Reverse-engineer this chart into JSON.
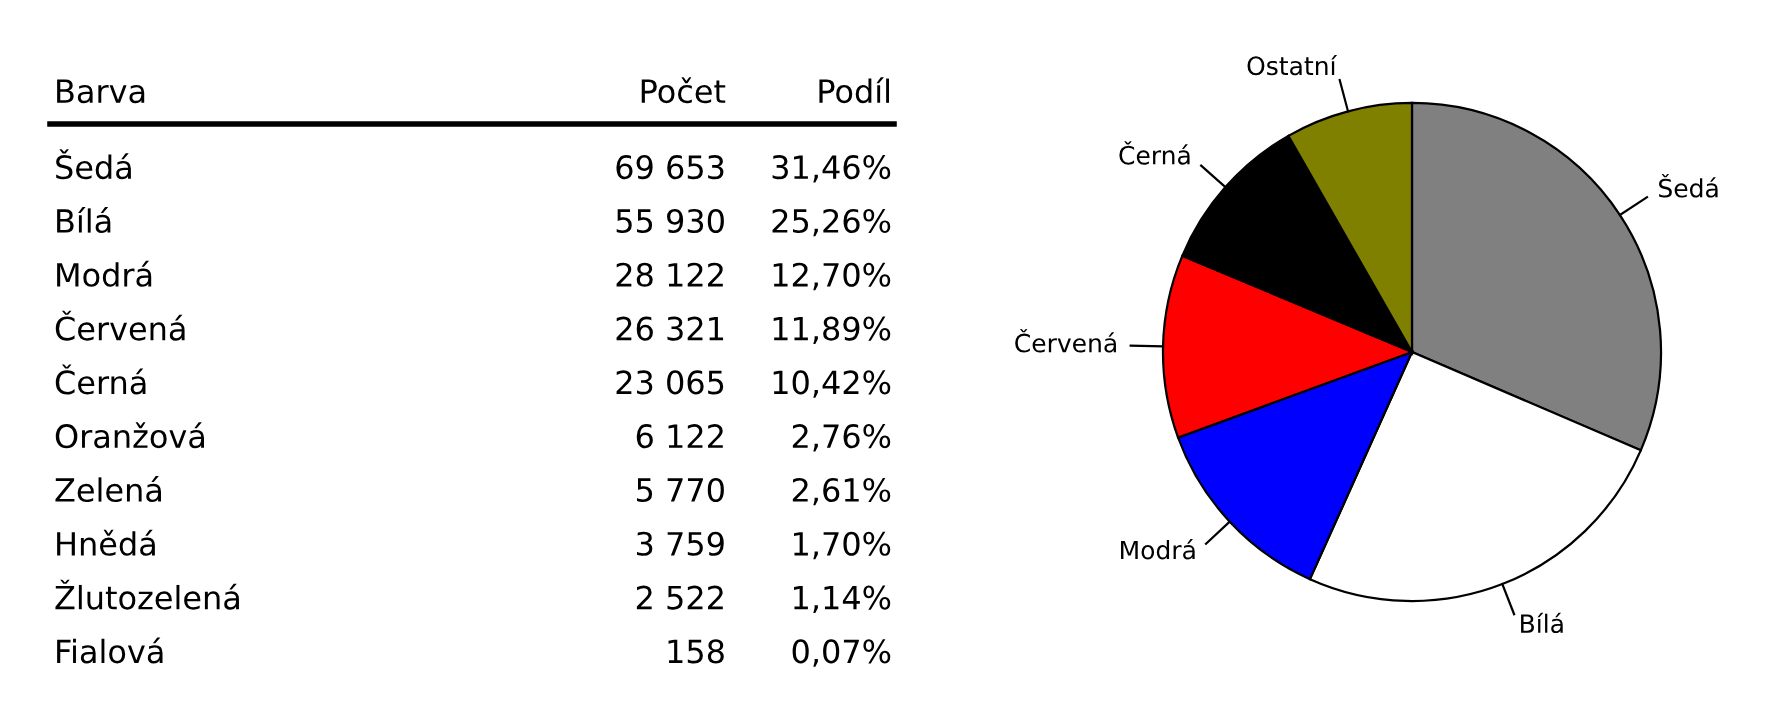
{
  "chart_data": [
    {
      "type": "other",
      "annotations": [
        "Barva"
      ],
      "categories": [
        "Šedá",
        "Bílá",
        "Modrá",
        "Červená",
        "Černá",
        "Oranžová",
        "Zelená",
        "Hnědá",
        "Žlutozelená",
        "Fialová"
      ],
      "series": [
        {
          "name": "Počet",
          "values": [
            69653,
            55930,
            28122,
            26321,
            23065,
            6122,
            5770,
            3759,
            2522,
            158
          ],
          "value_labels": [
            "69 653",
            "55 930",
            "28 122",
            "26 321",
            "23 065",
            "6 122",
            "5 770",
            "3 759",
            "2 522",
            "158"
          ]
        },
        {
          "name": "Podíl",
          "values": [
            31.46,
            25.26,
            12.7,
            11.89,
            10.42,
            2.76,
            2.61,
            1.7,
            1.14,
            0.07
          ],
          "value_labels": [
            "31,46%",
            "25,26%",
            "12,70%",
            "11,89%",
            "10,42%",
            "2,76%",
            "2,61%",
            "1,70%",
            "1,14%",
            "0,07%"
          ]
        }
      ]
    },
    {
      "type": "pie",
      "categories": [
        "Šedá",
        "Bílá",
        "Modrá",
        "Červená",
        "Černá",
        "Ostatní"
      ],
      "values": [
        31.46,
        25.26,
        12.7,
        11.89,
        10.42,
        8.27
      ],
      "colors": [
        "#808080",
        "#ffffff",
        "#0000ff",
        "#ff0000",
        "#000000",
        "#808000"
      ]
    }
  ]
}
